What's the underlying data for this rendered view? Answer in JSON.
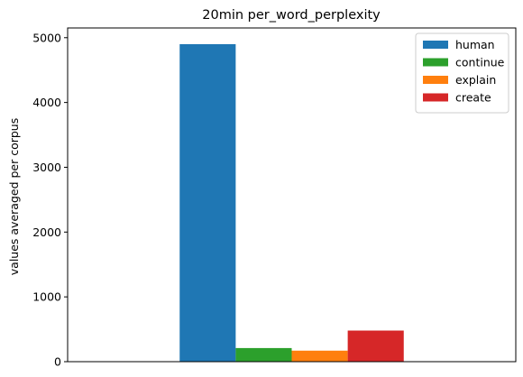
{
  "chart_data": {
    "type": "bar",
    "title": "20min per_word_perplexity",
    "xlabel": "",
    "ylabel": "values averaged per corpus",
    "categories": [
      ""
    ],
    "ylim": [
      0,
      5150
    ],
    "yticks": [
      0,
      1000,
      2000,
      3000,
      4000,
      5000
    ],
    "grid": false,
    "legend_position": "top-right",
    "series": [
      {
        "name": "human",
        "values": [
          4900
        ],
        "color": "#1f77b4"
      },
      {
        "name": "continue",
        "values": [
          210
        ],
        "color": "#2ca02c"
      },
      {
        "name": "explain",
        "values": [
          170
        ],
        "color": "#ff7f0e"
      },
      {
        "name": "create",
        "values": [
          480
        ],
        "color": "#d62728"
      }
    ]
  }
}
